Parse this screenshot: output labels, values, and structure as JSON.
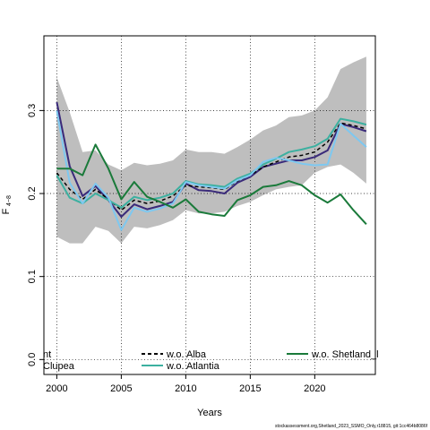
{
  "chart_data": {
    "type": "line",
    "xlabel": "Years",
    "ylabel_main": "F",
    "ylabel_sub": "4−8",
    "xlim": [
      1999,
      2024.7
    ],
    "ylim": [
      -0.018,
      0.39
    ],
    "x_ticks": [
      2000,
      2005,
      2010,
      2015,
      2020
    ],
    "y_ticks": [
      0.0,
      0.1,
      0.2,
      0.3
    ],
    "y_tick_labels": [
      "0.0",
      "0.1",
      "0.2",
      "0.3"
    ],
    "grid": true,
    "legend_placement": "bottom",
    "footer": "stockassessment.org,Shetland_2023_SSMO_Only,r18815, git:1cc464b8086f",
    "band": {
      "color": "#bebebe",
      "x": [
        2000,
        2001,
        2002,
        2003,
        2004,
        2005,
        2006,
        2007,
        2008,
        2009,
        2010,
        2011,
        2012,
        2013,
        2014,
        2015,
        2016,
        2017,
        2018,
        2019,
        2020,
        2021,
        2022,
        2023,
        2024
      ],
      "lower": [
        0.148,
        0.14,
        0.14,
        0.16,
        0.155,
        0.14,
        0.16,
        0.158,
        0.162,
        0.168,
        0.18,
        0.176,
        0.176,
        0.178,
        0.185,
        0.19,
        0.198,
        0.205,
        0.208,
        0.21,
        0.225,
        0.232,
        0.235,
        0.225,
        0.212
      ],
      "upper": [
        0.34,
        0.298,
        0.25,
        0.252,
        0.235,
        0.228,
        0.237,
        0.234,
        0.236,
        0.24,
        0.253,
        0.25,
        0.25,
        0.248,
        0.256,
        0.265,
        0.276,
        0.282,
        0.292,
        0.294,
        0.3,
        0.316,
        0.35,
        0.358,
        0.365
      ]
    },
    "series": [
      {
        "name": "",
        "label_parts": [
          "nt",
          "Clupea"
        ],
        "color": "#3a2a7a",
        "dash": "",
        "width": 2,
        "x": [
          2000,
          2001,
          2002,
          2003,
          2004,
          2005,
          2006,
          2007,
          2008,
          2009,
          2010,
          2011,
          2012,
          2013,
          2014,
          2015,
          2016,
          2017,
          2018,
          2019,
          2020,
          2021,
          2022,
          2023,
          2024
        ],
        "y": [
          0.31,
          0.233,
          0.197,
          0.209,
          0.192,
          0.172,
          0.187,
          0.181,
          0.185,
          0.19,
          0.212,
          0.204,
          0.203,
          0.2,
          0.213,
          0.22,
          0.232,
          0.236,
          0.24,
          0.24,
          0.244,
          0.252,
          0.284,
          0.28,
          0.275
        ]
      },
      {
        "name": "w.o. Alba",
        "color": "#000000",
        "dash": "4,3",
        "width": 1.5,
        "x": [
          2000,
          2001,
          2002,
          2003,
          2004,
          2005,
          2006,
          2007,
          2008,
          2009,
          2010,
          2011,
          2012,
          2013,
          2014,
          2015,
          2016,
          2017,
          2018,
          2019,
          2020,
          2021,
          2022,
          2023,
          2024
        ],
        "y": [
          0.225,
          0.205,
          0.193,
          0.205,
          0.193,
          0.18,
          0.192,
          0.188,
          0.191,
          0.197,
          0.21,
          0.208,
          0.207,
          0.205,
          0.215,
          0.222,
          0.232,
          0.238,
          0.244,
          0.246,
          0.25,
          0.262,
          0.285,
          0.282,
          0.278
        ]
      },
      {
        "name": "w.o. Atlantia",
        "color": "#3cb0a0",
        "dash": "",
        "width": 2,
        "x": [
          2000,
          2001,
          2002,
          2003,
          2004,
          2005,
          2006,
          2007,
          2008,
          2009,
          2010,
          2011,
          2012,
          2013,
          2014,
          2015,
          2016,
          2017,
          2018,
          2019,
          2020,
          2021,
          2022,
          2023,
          2024
        ],
        "y": [
          0.222,
          0.195,
          0.188,
          0.2,
          0.192,
          0.183,
          0.196,
          0.192,
          0.195,
          0.2,
          0.215,
          0.211,
          0.21,
          0.208,
          0.218,
          0.224,
          0.235,
          0.242,
          0.25,
          0.253,
          0.257,
          0.266,
          0.29,
          0.287,
          0.283
        ]
      },
      {
        "name": "",
        "color": "#7ec8f0",
        "dash": "",
        "width": 2,
        "x": [
          2000,
          2001,
          2002,
          2003,
          2004,
          2005,
          2006,
          2007,
          2008,
          2009,
          2010,
          2011,
          2012,
          2013,
          2014,
          2015,
          2016,
          2017,
          2018,
          2019,
          2020,
          2021,
          2022,
          2023,
          2024
        ],
        "y": [
          0.3,
          0.213,
          0.188,
          0.212,
          0.195,
          0.156,
          0.183,
          0.178,
          0.182,
          0.188,
          0.214,
          0.21,
          0.208,
          0.206,
          0.216,
          0.222,
          0.238,
          0.243,
          0.24,
          0.236,
          0.234,
          0.235,
          0.284,
          0.27,
          0.256
        ]
      },
      {
        "name": "w.o. Shetland_l",
        "color": "#1a7a3a",
        "dash": "",
        "width": 2,
        "x": [
          2000,
          2001,
          2002,
          2003,
          2004,
          2005,
          2006,
          2007,
          2008,
          2009,
          2010,
          2011,
          2012,
          2013,
          2014,
          2015,
          2016,
          2017,
          2018,
          2019,
          2020,
          2021,
          2022,
          2023,
          2024
        ],
        "y": [
          0.23,
          0.23,
          0.222,
          0.259,
          0.23,
          0.193,
          0.214,
          0.196,
          0.19,
          0.183,
          0.193,
          0.178,
          0.175,
          0.173,
          0.192,
          0.198,
          0.208,
          0.21,
          0.215,
          0.21,
          0.198,
          0.189,
          0.199,
          0.18,
          0.163
        ]
      }
    ],
    "legend": [
      {
        "label": "nt",
        "series_index": 0,
        "style": "solid"
      },
      {
        "label": "Clupea",
        "series_index": 0,
        "style": "solid"
      },
      {
        "label": "w.o. Alba",
        "series_index": 1,
        "style": "dashed"
      },
      {
        "label": "w.o. Atlantia",
        "series_index": 2,
        "style": "solid"
      },
      {
        "label": "w.o. Shetland_l",
        "series_index": 4,
        "style": "solid"
      }
    ]
  }
}
